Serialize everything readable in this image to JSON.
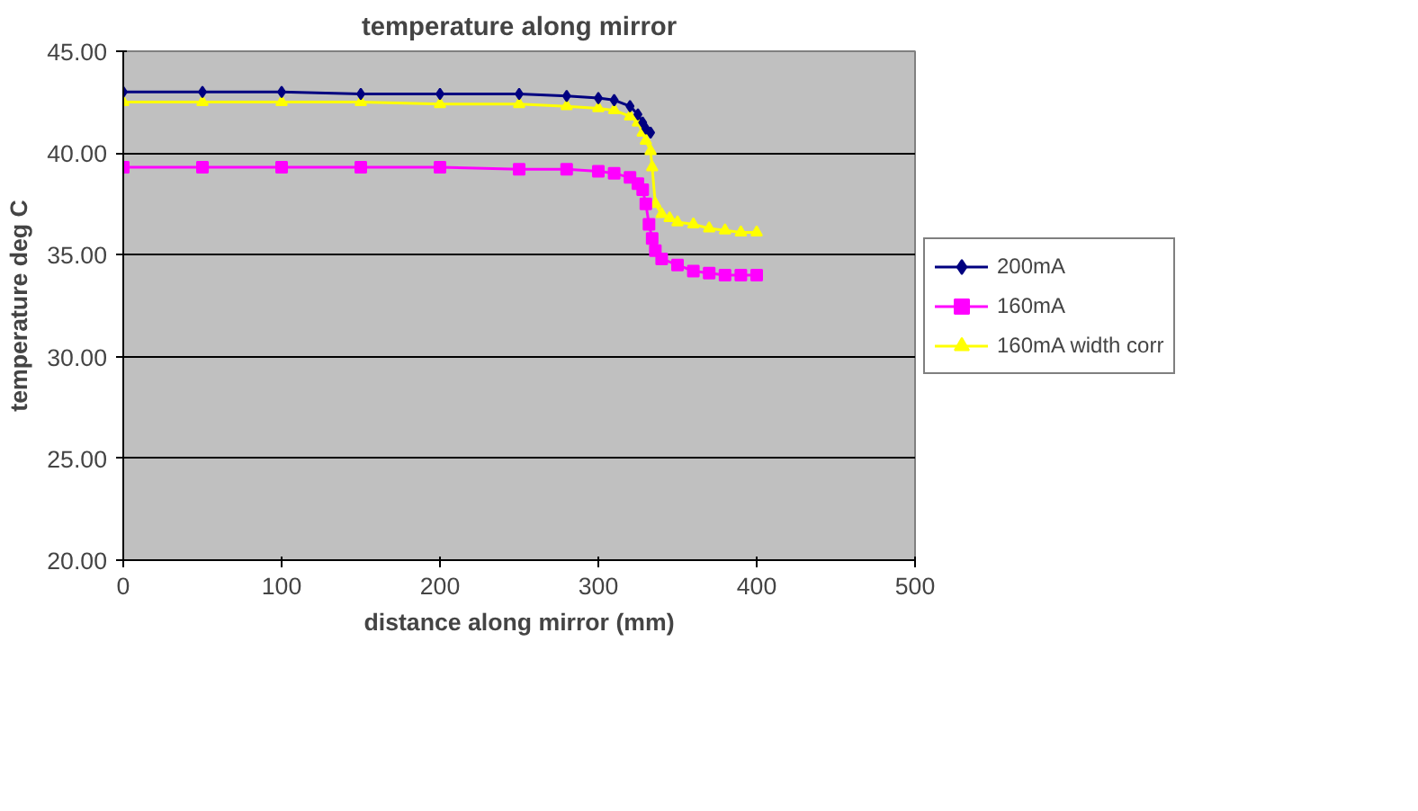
{
  "chart_data": {
    "type": "line",
    "title": "temperature along mirror",
    "xlabel": "distance along mirror (mm)",
    "ylabel": "temperature deg C",
    "xlim": [
      0,
      500
    ],
    "xticks": [
      0,
      100,
      200,
      300,
      400,
      500
    ],
    "ylim": [
      20,
      45
    ],
    "yticks": [
      {
        "value": 20,
        "label": "20.00"
      },
      {
        "value": 25,
        "label": "25.00"
      },
      {
        "value": 30,
        "label": "30.00"
      },
      {
        "value": 35,
        "label": "35.00"
      },
      {
        "value": 40,
        "label": "40.00"
      },
      {
        "value": 45,
        "label": "45.00"
      }
    ],
    "grid": "y",
    "legend": "right",
    "series": [
      {
        "name": "200mA",
        "color": "#000080",
        "marker": "diamond",
        "x": [
          0,
          50,
          100,
          150,
          200,
          250,
          280,
          300,
          310,
          320,
          325,
          328,
          330,
          333
        ],
        "values": [
          43.0,
          43.0,
          43.0,
          42.9,
          42.9,
          42.9,
          42.8,
          42.7,
          42.6,
          42.3,
          41.9,
          41.5,
          41.2,
          41.0
        ]
      },
      {
        "name": "160mA",
        "color": "#ff00ff",
        "marker": "square",
        "x": [
          0,
          50,
          100,
          150,
          200,
          250,
          280,
          300,
          310,
          320,
          325,
          328,
          330,
          332,
          334,
          336,
          340,
          350,
          360,
          370,
          380,
          390,
          400
        ],
        "values": [
          39.3,
          39.3,
          39.3,
          39.3,
          39.3,
          39.2,
          39.2,
          39.1,
          39.0,
          38.8,
          38.5,
          38.2,
          37.5,
          36.5,
          35.8,
          35.2,
          34.8,
          34.5,
          34.2,
          34.1,
          34.0,
          34.0,
          34.0
        ]
      },
      {
        "name": "160mA width corr",
        "color": "#ffff00",
        "marker": "triangle",
        "x": [
          0,
          50,
          100,
          150,
          200,
          250,
          280,
          300,
          310,
          320,
          325,
          328,
          330,
          333,
          334,
          336,
          340,
          345,
          350,
          360,
          370,
          380,
          390,
          400
        ],
        "values": [
          42.5,
          42.5,
          42.5,
          42.5,
          42.4,
          42.4,
          42.3,
          42.2,
          42.1,
          41.8,
          41.5,
          41.0,
          40.6,
          40.1,
          39.3,
          37.5,
          37.0,
          36.8,
          36.6,
          36.5,
          36.3,
          36.2,
          36.1,
          36.1
        ]
      }
    ]
  }
}
